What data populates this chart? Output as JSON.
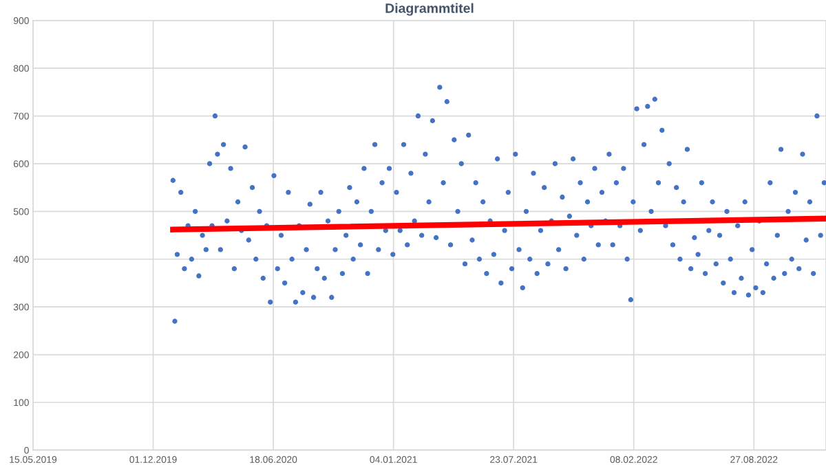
{
  "chart_data": {
    "type": "scatter",
    "title": "Diagrammtitel",
    "xlim": [
      "2019-05-15",
      "2022-12-25"
    ],
    "ylim": [
      0,
      900
    ],
    "xticks": [
      {
        "value": "2019-05-15",
        "label": "15.05.2019"
      },
      {
        "value": "2019-12-01",
        "label": "01.12.2019"
      },
      {
        "value": "2020-06-18",
        "label": "18.06.2020"
      },
      {
        "value": "2021-01-04",
        "label": "04.01.2021"
      },
      {
        "value": "2021-07-23",
        "label": "23.07.2021"
      },
      {
        "value": "2022-02-08",
        "label": "08.02.2022"
      },
      {
        "value": "2022-08-27",
        "label": "27.08.2022"
      }
    ],
    "yticks": [
      0,
      100,
      200,
      300,
      400,
      500,
      600,
      700,
      800,
      900
    ],
    "grid": true,
    "legend": false,
    "marker": "circle",
    "series": [
      {
        "color": "#4472c4",
        "x": [
          "2020-01-03",
          "2020-01-06",
          "2020-01-10",
          "2020-01-16",
          "2020-01-22",
          "2020-01-28",
          "2020-02-03",
          "2020-02-09",
          "2020-02-15",
          "2020-02-21",
          "2020-02-27",
          "2020-03-04",
          "2020-03-08",
          "2020-03-13",
          "2020-03-17",
          "2020-03-22",
          "2020-03-27",
          "2020-04-02",
          "2020-04-08",
          "2020-04-14",
          "2020-04-20",
          "2020-04-26",
          "2020-05-02",
          "2020-05-08",
          "2020-05-14",
          "2020-05-20",
          "2020-05-26",
          "2020-06-01",
          "2020-06-07",
          "2020-06-13",
          "2020-06-19",
          "2020-06-25",
          "2020-07-01",
          "2020-07-07",
          "2020-07-13",
          "2020-07-19",
          "2020-07-25",
          "2020-07-31",
          "2020-08-06",
          "2020-08-12",
          "2020-08-18",
          "2020-08-24",
          "2020-08-30",
          "2020-09-05",
          "2020-09-11",
          "2020-09-17",
          "2020-09-23",
          "2020-09-29",
          "2020-10-05",
          "2020-10-11",
          "2020-10-17",
          "2020-10-23",
          "2020-10-29",
          "2020-11-04",
          "2020-11-10",
          "2020-11-16",
          "2020-11-22",
          "2020-11-28",
          "2020-12-04",
          "2020-12-10",
          "2020-12-16",
          "2020-12-22",
          "2020-12-28",
          "2021-01-03",
          "2021-01-09",
          "2021-01-15",
          "2021-01-21",
          "2021-01-27",
          "2021-02-02",
          "2021-02-08",
          "2021-02-14",
          "2021-02-20",
          "2021-02-26",
          "2021-03-04",
          "2021-03-10",
          "2021-03-16",
          "2021-03-22",
          "2021-03-28",
          "2021-04-03",
          "2021-04-09",
          "2021-04-15",
          "2021-04-21",
          "2021-04-27",
          "2021-05-03",
          "2021-05-09",
          "2021-05-15",
          "2021-05-21",
          "2021-05-27",
          "2021-06-02",
          "2021-06-08",
          "2021-06-14",
          "2021-06-20",
          "2021-06-26",
          "2021-07-02",
          "2021-07-08",
          "2021-07-14",
          "2021-07-20",
          "2021-07-26",
          "2021-08-01",
          "2021-08-07",
          "2021-08-13",
          "2021-08-19",
          "2021-08-25",
          "2021-08-31",
          "2021-09-06",
          "2021-09-12",
          "2021-09-18",
          "2021-09-24",
          "2021-09-30",
          "2021-10-06",
          "2021-10-12",
          "2021-10-18",
          "2021-10-24",
          "2021-10-30",
          "2021-11-05",
          "2021-11-11",
          "2021-11-17",
          "2021-11-23",
          "2021-11-29",
          "2021-12-05",
          "2021-12-11",
          "2021-12-17",
          "2021-12-23",
          "2021-12-29",
          "2022-01-04",
          "2022-01-10",
          "2022-01-16",
          "2022-01-22",
          "2022-01-28",
          "2022-02-03",
          "2022-02-07",
          "2022-02-13",
          "2022-02-19",
          "2022-02-25",
          "2022-03-03",
          "2022-03-09",
          "2022-03-15",
          "2022-03-21",
          "2022-03-27",
          "2022-04-02",
          "2022-04-08",
          "2022-04-14",
          "2022-04-20",
          "2022-04-26",
          "2022-05-02",
          "2022-05-08",
          "2022-05-14",
          "2022-05-20",
          "2022-05-26",
          "2022-06-01",
          "2022-06-07",
          "2022-06-13",
          "2022-06-19",
          "2022-06-25",
          "2022-07-01",
          "2022-07-07",
          "2022-07-13",
          "2022-07-19",
          "2022-07-25",
          "2022-07-31",
          "2022-08-06",
          "2022-08-12",
          "2022-08-18",
          "2022-08-24",
          "2022-08-30",
          "2022-09-05",
          "2022-09-11",
          "2022-09-17",
          "2022-09-23",
          "2022-09-29",
          "2022-10-05",
          "2022-10-11",
          "2022-10-17",
          "2022-10-23",
          "2022-10-29",
          "2022-11-04",
          "2022-11-10",
          "2022-11-16",
          "2022-11-22",
          "2022-11-28",
          "2022-12-04",
          "2022-12-10",
          "2022-12-16",
          "2022-12-22"
        ],
        "values": [
          565,
          270,
          410,
          540,
          380,
          470,
          400,
          500,
          365,
          450,
          420,
          600,
          470,
          700,
          620,
          420,
          640,
          480,
          590,
          380,
          520,
          460,
          635,
          440,
          550,
          400,
          500,
          360,
          470,
          310,
          575,
          380,
          450,
          350,
          540,
          400,
          310,
          470,
          330,
          420,
          515,
          320,
          380,
          540,
          360,
          480,
          320,
          420,
          500,
          370,
          450,
          550,
          400,
          520,
          430,
          590,
          370,
          500,
          640,
          420,
          560,
          460,
          590,
          410,
          540,
          460,
          640,
          430,
          580,
          480,
          700,
          450,
          620,
          520,
          690,
          445,
          760,
          560,
          730,
          430,
          650,
          500,
          600,
          390,
          660,
          440,
          560,
          400,
          520,
          370,
          480,
          410,
          610,
          350,
          460,
          540,
          380,
          620,
          420,
          340,
          500,
          400,
          580,
          370,
          460,
          550,
          390,
          480,
          600,
          420,
          530,
          380,
          490,
          610,
          450,
          560,
          400,
          520,
          470,
          590,
          430,
          540,
          480,
          620,
          430,
          560,
          470,
          590,
          400,
          315,
          520,
          715,
          460,
          640,
          720,
          500,
          735,
          560,
          670,
          470,
          600,
          430,
          550,
          400,
          520,
          630,
          380,
          445,
          410,
          560,
          370,
          460,
          520,
          390,
          450,
          350,
          500,
          400,
          330,
          470,
          360,
          520,
          325,
          420,
          340,
          480,
          330,
          390,
          560,
          360,
          450,
          630,
          370,
          500,
          400,
          540,
          380,
          620,
          440,
          520,
          370,
          700,
          450,
          560
        ]
      },
      {
        "type": "line",
        "color": "#ff0000",
        "marker": "none",
        "line_style": "solid",
        "x": [
          "2020-01-03",
          "2022-12-25"
        ],
        "values": [
          462,
          485
        ]
      }
    ]
  }
}
